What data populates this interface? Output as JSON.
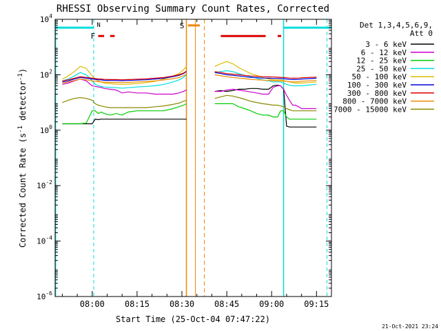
{
  "chart_data": {
    "type": "line",
    "title": "RHESSI Observing Summary Count Rates, Corrected",
    "xlabel": "Start Time (25-Oct-04 07:47:22)",
    "ylabel_main": "Corrected Count Rate (s",
    "ylabel_sup": "-1",
    "ylabel_mid": " detector",
    "ylabel_end": ")",
    "y_scale": "log",
    "ylim": [
      1e-06,
      10000.0
    ],
    "xlim_minutes": [
      -12.4,
      80.0
    ],
    "y_ticks": [
      {
        "base": "10",
        "exp": "-6",
        "value": -6
      },
      {
        "base": "10",
        "exp": "-4",
        "value": -4
      },
      {
        "base": "10",
        "exp": "-2",
        "value": -2
      },
      {
        "base": "10",
        "exp": "0",
        "value": 0
      },
      {
        "base": "10",
        "exp": "2",
        "value": 2
      },
      {
        "base": "10",
        "exp": "4",
        "value": 4
      }
    ],
    "x_ticks": [
      {
        "label": "08:00",
        "minutes": 0
      },
      {
        "label": "08:15",
        "minutes": 15
      },
      {
        "label": "08:30",
        "minutes": 30
      },
      {
        "label": "08:45",
        "minutes": 45
      },
      {
        "label": "09:00",
        "minutes": 60
      },
      {
        "label": "09:15",
        "minutes": 75
      }
    ],
    "legend": {
      "header_line1": "Det 1,3,4,5,6,9,",
      "header_line2": "Att 0",
      "placement": "top-right outside"
    },
    "series": [
      {
        "name": "3 - 6 keV",
        "color": "#000000",
        "x": [
          -10,
          -8,
          -6,
          -4,
          -2,
          0,
          1,
          2,
          3,
          4,
          6,
          8,
          10,
          12,
          15,
          18,
          21,
          24,
          27,
          29,
          30.5,
          31.5,
          41,
          43,
          45,
          47,
          49,
          51,
          53,
          55,
          57,
          59,
          60.5,
          62,
          63,
          64,
          65,
          66,
          67,
          68,
          69,
          70,
          72,
          75
        ],
        "y": [
          1.7,
          1.7,
          1.7,
          1.7,
          1.7,
          1.7,
          2.5,
          2.4,
          2.5,
          2.5,
          2.5,
          2.5,
          2.5,
          2.5,
          2.5,
          2.5,
          2.5,
          2.5,
          2.5,
          2.5,
          2.5,
          2.5,
          25,
          27,
          25,
          27,
          30,
          30,
          32,
          32,
          30,
          30,
          40,
          42,
          40,
          30,
          1.4,
          1.3,
          1.3,
          1.3,
          1.3,
          1.3,
          1.3,
          1.3
        ]
      },
      {
        "name": "6 - 12 keV",
        "color": "#cc00cc",
        "x": [
          -10,
          -8,
          -6,
          -4,
          -2,
          0,
          1,
          2,
          3,
          4,
          6,
          8,
          10,
          12,
          15,
          18,
          21,
          24,
          27,
          29,
          30.5,
          31.5,
          41,
          43,
          45,
          47,
          49,
          51,
          53,
          55,
          57,
          59,
          60.5,
          62,
          63,
          64,
          65,
          66,
          67,
          68,
          69,
          70,
          72,
          75
        ],
        "y": [
          45,
          50,
          60,
          70,
          60,
          40,
          38,
          36,
          35,
          32,
          30,
          28,
          22,
          24,
          22,
          22,
          20,
          20,
          20,
          22,
          25,
          28,
          25,
          25,
          28,
          30,
          28,
          26,
          24,
          22,
          20,
          20,
          35,
          40,
          40,
          30,
          18,
          12,
          8,
          8,
          7,
          6,
          6,
          6
        ]
      },
      {
        "name": "12 - 25 keV",
        "color": "#00cc00",
        "x": [
          -10,
          -8,
          -6,
          -4,
          -2,
          0,
          1,
          2,
          3,
          4,
          6,
          8,
          10,
          12,
          15,
          18,
          21,
          24,
          27,
          29,
          30.5,
          31.5,
          41,
          43,
          45,
          47,
          49,
          51,
          53,
          55,
          57,
          59,
          60.5,
          62,
          63,
          64,
          65,
          66,
          67,
          68,
          69,
          70,
          72,
          75
        ],
        "y": [
          1.7,
          1.7,
          1.7,
          1.7,
          1.8,
          5,
          5,
          4,
          4.5,
          4,
          3.5,
          4,
          3.5,
          4.5,
          5,
          5,
          5,
          5,
          6,
          7,
          8,
          9,
          9,
          9,
          9,
          9,
          7,
          6,
          5,
          4,
          3.5,
          3.5,
          3,
          3,
          5,
          5,
          3,
          2.5,
          2.5,
          2.5,
          2.5,
          2.5,
          2.5,
          2.5
        ]
      },
      {
        "name": "25 - 50 keV",
        "color": "#00dddd",
        "x": [
          -10,
          -8,
          -6,
          -4,
          -2,
          0,
          1,
          2,
          3,
          4,
          6,
          8,
          10,
          12,
          15,
          18,
          21,
          24,
          27,
          29,
          30.5,
          31.5,
          41,
          43,
          45,
          47,
          49,
          51,
          53,
          55,
          57,
          59,
          60.5,
          62,
          63,
          64,
          65,
          66,
          67,
          68,
          69,
          70,
          72,
          75
        ],
        "y": [
          60,
          70,
          90,
          120,
          100,
          60,
          45,
          40,
          38,
          36,
          35,
          34,
          33,
          34,
          36,
          38,
          40,
          45,
          55,
          65,
          80,
          100,
          120,
          130,
          140,
          130,
          110,
          95,
          85,
          75,
          65,
          60,
          55,
          55,
          55,
          50,
          45,
          42,
          40,
          40,
          40,
          40,
          42,
          45
        ]
      },
      {
        "name": "50 - 100 keV",
        "color": "#ddbb00",
        "x": [
          -10,
          -8,
          -6,
          -4,
          -2,
          0,
          1,
          2,
          3,
          4,
          6,
          8,
          10,
          12,
          15,
          18,
          21,
          24,
          27,
          29,
          30.5,
          31.5,
          41,
          43,
          45,
          47,
          49,
          51,
          53,
          55,
          57,
          59,
          60.5,
          62,
          63,
          64,
          65,
          66,
          67,
          68,
          69,
          70,
          72,
          75
        ],
        "y": [
          70,
          90,
          130,
          200,
          170,
          90,
          70,
          60,
          55,
          50,
          48,
          46,
          45,
          46,
          48,
          52,
          58,
          70,
          90,
          110,
          150,
          200,
          200,
          250,
          300,
          250,
          180,
          140,
          110,
          95,
          80,
          70,
          65,
          65,
          65,
          62,
          58,
          55,
          52,
          50,
          50,
          50,
          52,
          55
        ]
      },
      {
        "name": "100 - 300 keV",
        "color": "#0000dd",
        "x": [
          -10,
          -8,
          -6,
          -4,
          -2,
          0,
          1,
          2,
          3,
          4,
          6,
          8,
          10,
          12,
          15,
          18,
          21,
          24,
          27,
          29,
          30.5,
          31.5,
          41,
          43,
          45,
          47,
          49,
          51,
          53,
          55,
          57,
          59,
          60.5,
          62,
          63,
          64,
          65,
          66,
          67,
          68,
          69,
          70,
          72,
          75
        ],
        "y": [
          55,
          60,
          70,
          80,
          75,
          70,
          68,
          66,
          65,
          63,
          62,
          62,
          61,
          62,
          64,
          66,
          70,
          75,
          85,
          95,
          110,
          130,
          120,
          110,
          100,
          95,
          90,
          85,
          80,
          78,
          76,
          75,
          74,
          74,
          73,
          72,
          70,
          68,
          67,
          67,
          68,
          70,
          72,
          75
        ]
      },
      {
        "name": "300 - 800 keV",
        "color": "#dd0000",
        "x": [
          -10,
          -8,
          -6,
          -4,
          -2,
          0,
          1,
          2,
          3,
          4,
          6,
          8,
          10,
          12,
          15,
          18,
          21,
          24,
          27,
          29,
          30.5,
          31.5,
          41,
          43,
          45,
          47,
          49,
          51,
          53,
          55,
          57,
          59,
          60.5,
          62,
          63,
          64,
          65,
          66,
          67,
          68,
          69,
          70,
          72,
          75
        ],
        "y": [
          60,
          66,
          75,
          85,
          80,
          75,
          73,
          71,
          70,
          68,
          67,
          67,
          66,
          67,
          69,
          71,
          75,
          80,
          90,
          100,
          115,
          135,
          130,
          120,
          110,
          105,
          100,
          95,
          90,
          88,
          85,
          84,
          83,
          82,
          81,
          80,
          78,
          76,
          75,
          75,
          76,
          78,
          80,
          82
        ]
      },
      {
        "name": "800 - 7000 keV",
        "color": "#ee8800",
        "x": [
          -10,
          -8,
          -6,
          -4,
          -2,
          0,
          1,
          2,
          3,
          4,
          6,
          8,
          10,
          12,
          15,
          18,
          21,
          24,
          27,
          29,
          30.5,
          31.5,
          41,
          43,
          45,
          47,
          49,
          51,
          53,
          55,
          57,
          59,
          60.5,
          62,
          63,
          64,
          65,
          66,
          67,
          68,
          69,
          70,
          72,
          75
        ],
        "y": [
          50,
          55,
          62,
          70,
          66,
          60,
          58,
          56,
          55,
          54,
          53,
          53,
          52,
          53,
          55,
          57,
          60,
          65,
          72,
          80,
          92,
          105,
          100,
          92,
          85,
          80,
          76,
          72,
          68,
          66,
          64,
          62,
          61,
          60,
          60,
          59,
          58,
          56,
          55,
          55,
          56,
          58,
          60,
          62
        ]
      },
      {
        "name": "7000 - 15000 keV",
        "color": "#888800",
        "x": [
          -10,
          -8,
          -6,
          -4,
          -2,
          0,
          1,
          2,
          3,
          4,
          6,
          8,
          10,
          12,
          15,
          18,
          21,
          24,
          27,
          29,
          30.5,
          31.5,
          41,
          43,
          45,
          47,
          49,
          51,
          53,
          55,
          57,
          59,
          60.5,
          62,
          63,
          64,
          65,
          66,
          67,
          68,
          69,
          70,
          72,
          75
        ],
        "y": [
          10,
          12,
          14,
          15,
          14,
          12,
          9,
          8,
          7.5,
          7,
          6.5,
          6.5,
          6.5,
          6.5,
          6.5,
          6.5,
          7,
          7.5,
          8.5,
          9.5,
          11,
          12,
          14,
          16,
          18,
          17,
          15,
          13,
          11,
          10,
          9,
          8.5,
          8,
          8,
          7.5,
          7,
          6,
          5.5,
          5,
          5,
          5,
          5,
          5,
          5
        ]
      }
    ],
    "annotations": [
      {
        "label": "N",
        "color": "#00dddd"
      },
      {
        "label": "F",
        "color": "#dd0000"
      },
      {
        "label": "S",
        "color": "#ee8800"
      }
    ],
    "footer": "21-Oct-2021 23:24"
  }
}
